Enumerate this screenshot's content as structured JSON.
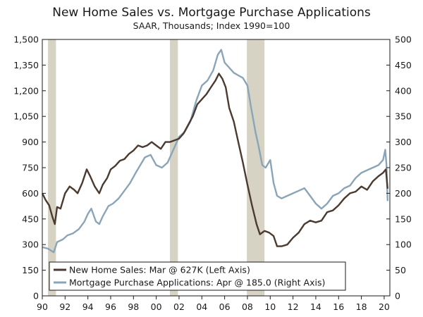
{
  "chart_data": {
    "type": "line",
    "title": "New Home Sales vs. Mortgage Purchase Applications",
    "subtitle": "SAAR, Thousands; Index 1990=100",
    "x_ticks": [
      "90",
      "92",
      "94",
      "96",
      "98",
      "00",
      "02",
      "04",
      "06",
      "08",
      "10",
      "12",
      "14",
      "16",
      "18",
      "20"
    ],
    "x_range": [
      1990,
      2020.5
    ],
    "left_axis": {
      "range": [
        0,
        1500
      ],
      "ticks": [
        "0",
        "150",
        "300",
        "450",
        "600",
        "750",
        "900",
        "1,050",
        "1,200",
        "1,350",
        "1,500"
      ]
    },
    "right_axis": {
      "range": [
        0,
        500
      ],
      "ticks": [
        "0",
        "50",
        "100",
        "150",
        "200",
        "250",
        "300",
        "350",
        "400",
        "450",
        "500"
      ]
    },
    "grid": false,
    "legend_position": "bottom-left",
    "recession_shading": [
      [
        1990.5,
        1991.2
      ],
      [
        2001.2,
        2001.9
      ],
      [
        2007.95,
        2009.5
      ]
    ],
    "colors": {
      "sales": "#4a3a30",
      "applications": "#8aa5b8",
      "recession": "#d6d2c4"
    },
    "series": [
      {
        "name": "New Home Sales: Mar @ 627K (Left Axis)",
        "axis": "left",
        "points": [
          [
            1990.0,
            600
          ],
          [
            1990.3,
            560
          ],
          [
            1990.6,
            530
          ],
          [
            1990.9,
            460
          ],
          [
            1991.1,
            420
          ],
          [
            1991.3,
            520
          ],
          [
            1991.6,
            510
          ],
          [
            1992.0,
            600
          ],
          [
            1992.4,
            640
          ],
          [
            1992.8,
            620
          ],
          [
            1993.1,
            600
          ],
          [
            1993.5,
            660
          ],
          [
            1993.9,
            740
          ],
          [
            1994.2,
            700
          ],
          [
            1994.6,
            640
          ],
          [
            1995.0,
            600
          ],
          [
            1995.3,
            650
          ],
          [
            1995.7,
            690
          ],
          [
            1996.0,
            740
          ],
          [
            1996.4,
            760
          ],
          [
            1996.8,
            790
          ],
          [
            1997.2,
            800
          ],
          [
            1997.6,
            830
          ],
          [
            1998.0,
            850
          ],
          [
            1998.4,
            880
          ],
          [
            1998.8,
            870
          ],
          [
            1999.2,
            880
          ],
          [
            1999.6,
            900
          ],
          [
            2000.0,
            880
          ],
          [
            2000.4,
            860
          ],
          [
            2000.8,
            900
          ],
          [
            2001.2,
            900
          ],
          [
            2001.6,
            910
          ],
          [
            2002.0,
            920
          ],
          [
            2002.4,
            950
          ],
          [
            2002.8,
            1000
          ],
          [
            2003.2,
            1050
          ],
          [
            2003.6,
            1120
          ],
          [
            2004.0,
            1150
          ],
          [
            2004.4,
            1180
          ],
          [
            2004.8,
            1220
          ],
          [
            2005.2,
            1260
          ],
          [
            2005.5,
            1300
          ],
          [
            2005.8,
            1270
          ],
          [
            2006.1,
            1220
          ],
          [
            2006.4,
            1100
          ],
          [
            2006.8,
            1020
          ],
          [
            2007.2,
            900
          ],
          [
            2007.6,
            780
          ],
          [
            2008.0,
            650
          ],
          [
            2008.4,
            530
          ],
          [
            2008.8,
            420
          ],
          [
            2009.1,
            360
          ],
          [
            2009.5,
            380
          ],
          [
            2009.9,
            370
          ],
          [
            2010.3,
            350
          ],
          [
            2010.6,
            290
          ],
          [
            2011.0,
            290
          ],
          [
            2011.5,
            300
          ],
          [
            2012.0,
            340
          ],
          [
            2012.5,
            370
          ],
          [
            2013.0,
            420
          ],
          [
            2013.5,
            440
          ],
          [
            2014.0,
            430
          ],
          [
            2014.5,
            440
          ],
          [
            2015.0,
            490
          ],
          [
            2015.5,
            500
          ],
          [
            2016.0,
            530
          ],
          [
            2016.5,
            570
          ],
          [
            2017.0,
            600
          ],
          [
            2017.5,
            610
          ],
          [
            2018.0,
            640
          ],
          [
            2018.5,
            620
          ],
          [
            2019.0,
            670
          ],
          [
            2019.5,
            700
          ],
          [
            2019.9,
            720
          ],
          [
            2020.15,
            740
          ],
          [
            2020.3,
            627
          ]
        ]
      },
      {
        "name": "Mortgage Purchase Applications: Apr @ 185.0 (Right Axis)",
        "axis": "right",
        "points": [
          [
            1990.0,
            95
          ],
          [
            1990.5,
            92
          ],
          [
            1991.0,
            85
          ],
          [
            1991.3,
            105
          ],
          [
            1991.8,
            110
          ],
          [
            1992.2,
            118
          ],
          [
            1992.7,
            122
          ],
          [
            1993.2,
            130
          ],
          [
            1993.7,
            145
          ],
          [
            1994.0,
            160
          ],
          [
            1994.3,
            170
          ],
          [
            1994.7,
            145
          ],
          [
            1995.0,
            140
          ],
          [
            1995.3,
            155
          ],
          [
            1995.8,
            175
          ],
          [
            1996.2,
            180
          ],
          [
            1996.7,
            190
          ],
          [
            1997.2,
            205
          ],
          [
            1997.7,
            220
          ],
          [
            1998.2,
            240
          ],
          [
            1998.6,
            255
          ],
          [
            1999.0,
            270
          ],
          [
            1999.5,
            275
          ],
          [
            2000.0,
            255
          ],
          [
            2000.5,
            250
          ],
          [
            2001.0,
            260
          ],
          [
            2001.5,
            285
          ],
          [
            2002.0,
            310
          ],
          [
            2002.5,
            320
          ],
          [
            2003.0,
            340
          ],
          [
            2003.5,
            380
          ],
          [
            2004.0,
            410
          ],
          [
            2004.5,
            420
          ],
          [
            2005.0,
            440
          ],
          [
            2005.4,
            470
          ],
          [
            2005.7,
            480
          ],
          [
            2006.0,
            455
          ],
          [
            2006.4,
            445
          ],
          [
            2006.8,
            435
          ],
          [
            2007.2,
            430
          ],
          [
            2007.6,
            425
          ],
          [
            2008.0,
            410
          ],
          [
            2008.3,
            370
          ],
          [
            2008.7,
            320
          ],
          [
            2009.0,
            290
          ],
          [
            2009.3,
            255
          ],
          [
            2009.6,
            250
          ],
          [
            2010.0,
            265
          ],
          [
            2010.3,
            220
          ],
          [
            2010.6,
            195
          ],
          [
            2011.0,
            190
          ],
          [
            2011.5,
            195
          ],
          [
            2012.0,
            200
          ],
          [
            2012.5,
            205
          ],
          [
            2013.0,
            210
          ],
          [
            2013.5,
            195
          ],
          [
            2014.0,
            180
          ],
          [
            2014.5,
            170
          ],
          [
            2015.0,
            180
          ],
          [
            2015.5,
            195
          ],
          [
            2016.0,
            200
          ],
          [
            2016.5,
            210
          ],
          [
            2017.0,
            215
          ],
          [
            2017.5,
            230
          ],
          [
            2018.0,
            240
          ],
          [
            2018.5,
            245
          ],
          [
            2019.0,
            250
          ],
          [
            2019.5,
            255
          ],
          [
            2019.9,
            265
          ],
          [
            2020.1,
            285
          ],
          [
            2020.2,
            255
          ],
          [
            2020.3,
            185
          ]
        ]
      }
    ]
  }
}
